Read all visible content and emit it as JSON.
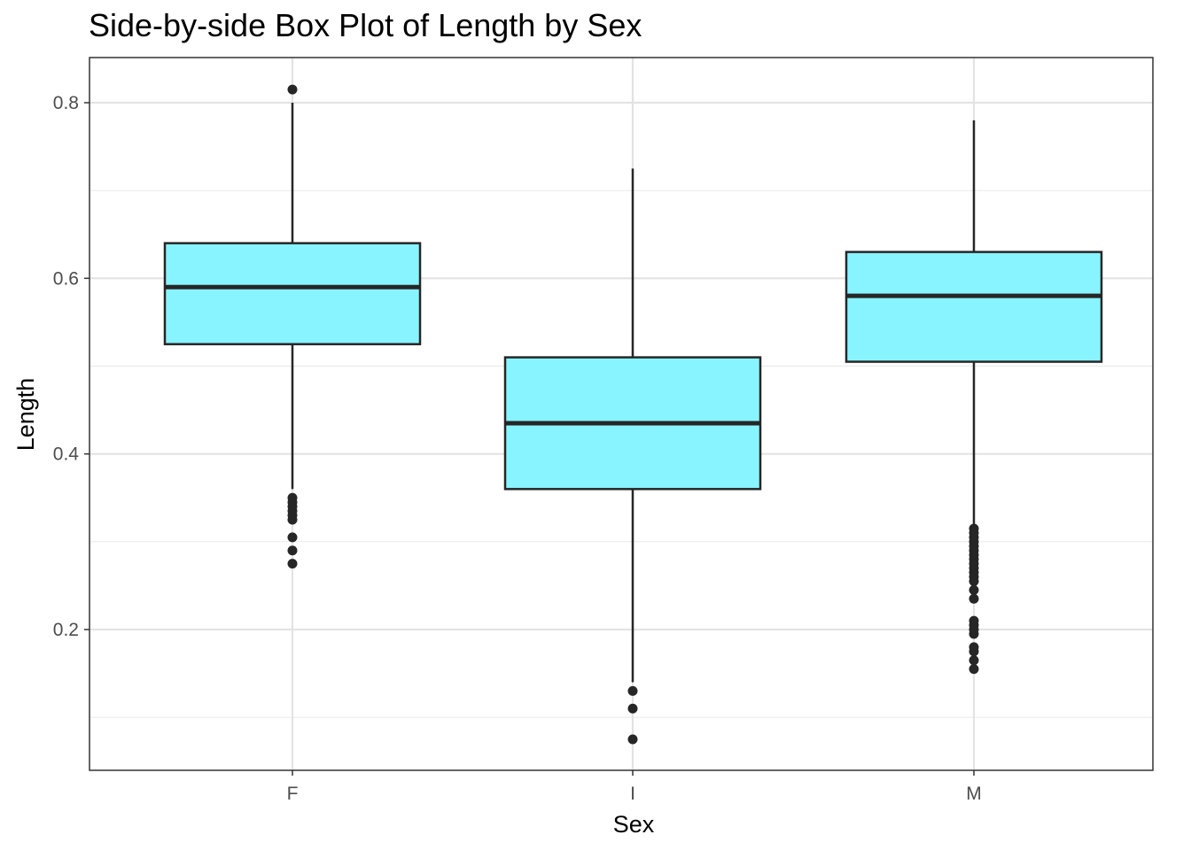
{
  "chart_data": {
    "type": "box",
    "title": "Side-by-side Box Plot of Length by Sex",
    "xlabel": "Sex",
    "ylabel": "Length",
    "categories": [
      "F",
      "I",
      "M"
    ],
    "ylim": [
      0.04,
      0.85
    ],
    "yticks": [
      0.2,
      0.4,
      0.6,
      0.8
    ],
    "ytick_labels": [
      "0.2",
      "0.4",
      "0.6",
      "0.8"
    ],
    "grid": true,
    "box_fill": "#87F4FF",
    "box_stroke": "#262626",
    "boxes": [
      {
        "category": "F",
        "whisker_low": 0.36,
        "q1": 0.525,
        "median": 0.59,
        "q3": 0.64,
        "whisker_high": 0.8,
        "outliers": [
          0.815,
          0.35,
          0.345,
          0.34,
          0.335,
          0.33,
          0.325,
          0.305,
          0.29,
          0.275
        ]
      },
      {
        "category": "I",
        "whisker_low": 0.14,
        "q1": 0.36,
        "median": 0.435,
        "q3": 0.51,
        "whisker_high": 0.725,
        "outliers": [
          0.13,
          0.11,
          0.075
        ]
      },
      {
        "category": "M",
        "whisker_low": 0.32,
        "q1": 0.505,
        "median": 0.58,
        "q3": 0.63,
        "whisker_high": 0.78,
        "outliers": [
          0.315,
          0.31,
          0.305,
          0.3,
          0.295,
          0.29,
          0.285,
          0.28,
          0.275,
          0.27,
          0.265,
          0.26,
          0.255,
          0.245,
          0.235,
          0.21,
          0.205,
          0.2,
          0.195,
          0.18,
          0.175,
          0.165,
          0.155
        ]
      }
    ]
  }
}
